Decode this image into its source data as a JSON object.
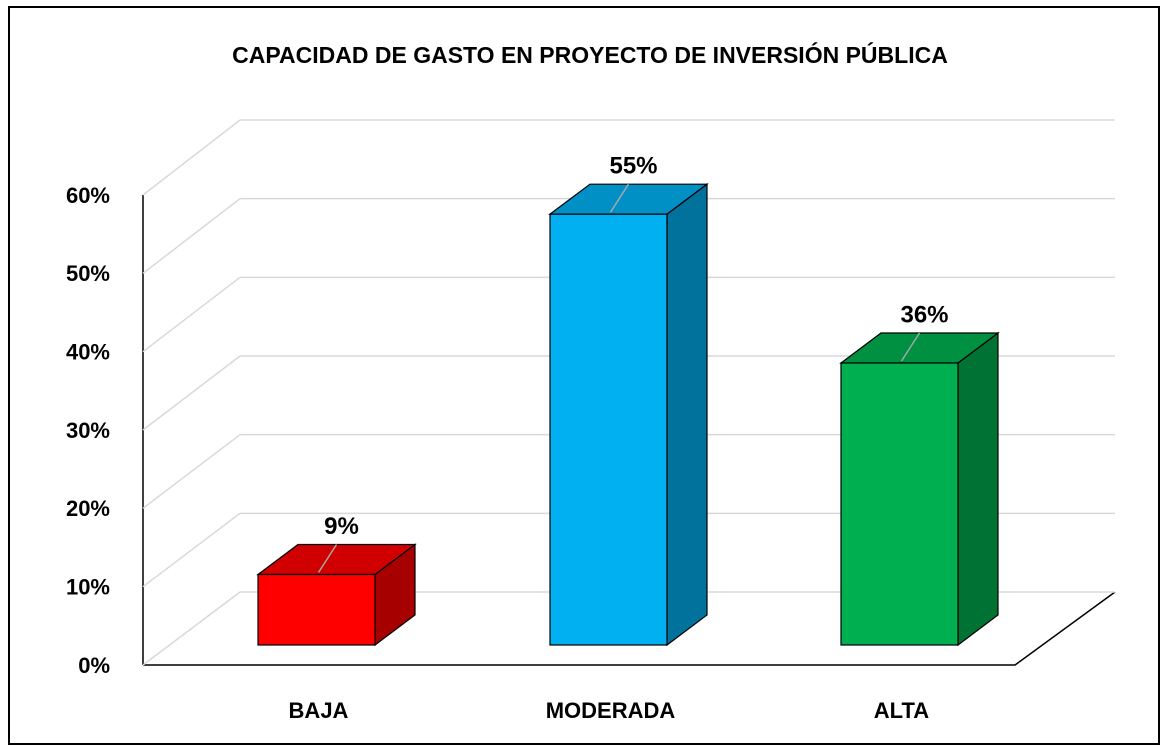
{
  "chart_data": {
    "type": "bar3d",
    "title": "CAPACIDAD DE GASTO EN PROYECTO DE INVERSIÓN PÚBLICA",
    "categories": [
      "BAJA",
      "MODERADA",
      "ALTA"
    ],
    "values": [
      9,
      55,
      36
    ],
    "value_labels": [
      "9%",
      "55%",
      "36%"
    ],
    "colors": [
      "#ff0000",
      "#00b0f0",
      "#00b050"
    ],
    "ylim": [
      0,
      60
    ],
    "yticks": [
      {
        "value": 0,
        "label": "0%"
      },
      {
        "value": 10,
        "label": "10%"
      },
      {
        "value": 20,
        "label": "20%"
      },
      {
        "value": 30,
        "label": "30%"
      },
      {
        "value": 40,
        "label": "40%"
      },
      {
        "value": 50,
        "label": "50%"
      },
      {
        "value": 60,
        "label": "60%"
      }
    ],
    "grid": true
  }
}
